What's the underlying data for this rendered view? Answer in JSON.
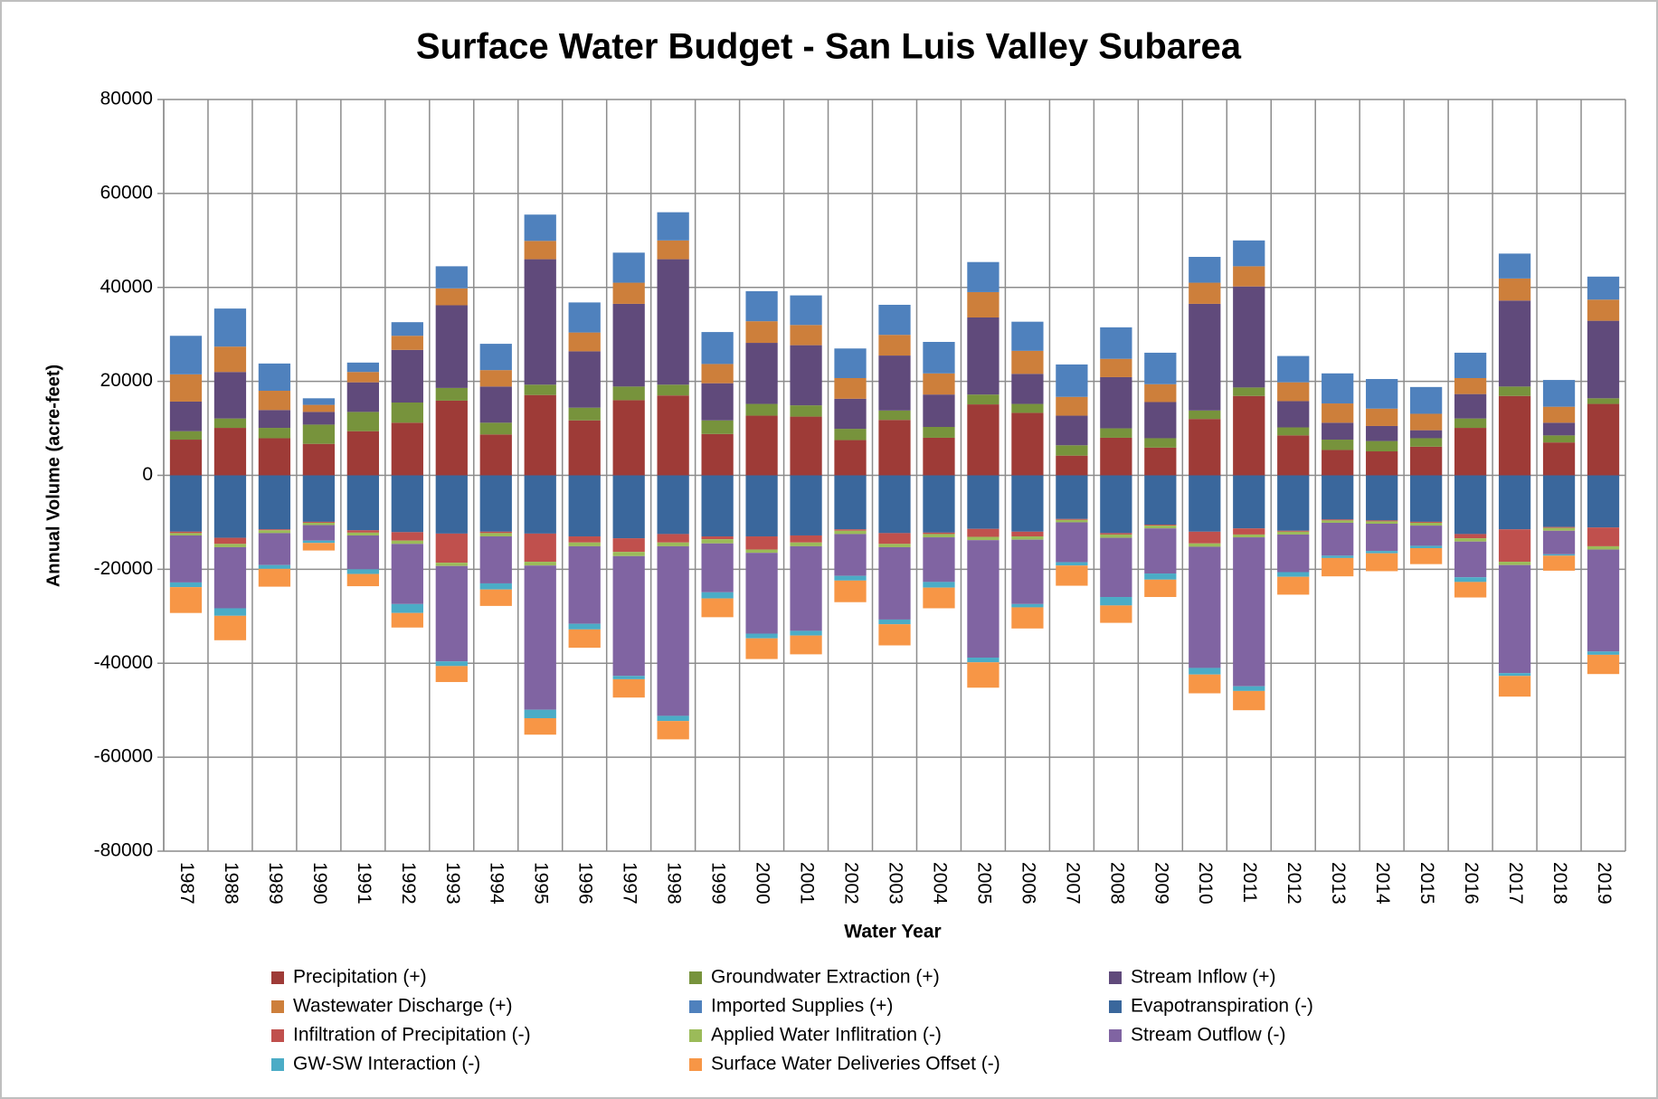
{
  "chart_data": {
    "type": "stacked_bar",
    "title": "Surface Water Budget - San Luis Valley Subarea",
    "x_label": "Water Year",
    "y_label": "Annual Volume (acre-feet)",
    "categories": [
      "1987",
      "1988",
      "1989",
      "1990",
      "1991",
      "1992",
      "1993",
      "1994",
      "1995",
      "1996",
      "1997",
      "1998",
      "1999",
      "2000",
      "2001",
      "2002",
      "2003",
      "2004",
      "2005",
      "2006",
      "2007",
      "2008",
      "2009",
      "2010",
      "2011",
      "2012",
      "2013",
      "2014",
      "2015",
      "2016",
      "2017",
      "2018",
      "2019"
    ],
    "ylim": [
      -80000,
      80000
    ],
    "yticks": [
      -80000,
      -60000,
      -40000,
      -20000,
      0,
      20000,
      40000,
      60000,
      80000
    ],
    "grid": true,
    "legend": "bottom",
    "series": [
      {
        "name": "Precipitation (+)",
        "color": "#9e3b37",
        "values": [
          7600,
          10100,
          7900,
          6700,
          9400,
          11200,
          15900,
          8700,
          17100,
          11700,
          16000,
          17000,
          8800,
          12700,
          12500,
          7500,
          11800,
          8000,
          15100,
          13300,
          4200,
          8000,
          5900,
          12000,
          16900,
          8500,
          5400,
          5100,
          6100,
          10100,
          16900,
          7000,
          15200
        ]
      },
      {
        "name": "Groundwater Extraction (+)",
        "color": "#77933c",
        "values": [
          1800,
          2000,
          2200,
          4100,
          4100,
          4300,
          2700,
          2500,
          2200,
          2700,
          2900,
          2300,
          2900,
          2500,
          2400,
          2400,
          2000,
          2300,
          2100,
          1900,
          2200,
          2000,
          2000,
          1800,
          1800,
          1700,
          2200,
          2200,
          1800,
          2000,
          2000,
          1500,
          1200
        ]
      },
      {
        "name": "Stream Inflow (+)",
        "color": "#604a7b",
        "values": [
          6300,
          9900,
          3800,
          2700,
          6300,
          11200,
          17600,
          7700,
          26700,
          12000,
          17600,
          26700,
          7900,
          13000,
          12800,
          6400,
          11700,
          6900,
          16400,
          6400,
          6300,
          10900,
          7700,
          22700,
          21500,
          5600,
          3600,
          3200,
          1700,
          5200,
          18300,
          2700,
          16500
        ]
      },
      {
        "name": "Wastewater Discharge (+)",
        "color": "#cd7f3b",
        "values": [
          5800,
          5400,
          4100,
          1500,
          2200,
          3000,
          3600,
          3500,
          3900,
          4000,
          4500,
          4000,
          4100,
          4600,
          4300,
          4400,
          4400,
          4500,
          5400,
          4900,
          4000,
          3900,
          3800,
          4500,
          4300,
          4000,
          4100,
          3700,
          3500,
          3400,
          4700,
          3400,
          4500
        ]
      },
      {
        "name": "Imported Supplies (+)",
        "color": "#4f81bd",
        "values": [
          8200,
          8100,
          5800,
          1400,
          2000,
          2900,
          4700,
          5600,
          5600,
          6400,
          6400,
          6000,
          6800,
          6400,
          6300,
          6300,
          6400,
          6700,
          6400,
          6200,
          6900,
          6700,
          6700,
          5500,
          5500,
          5600,
          6400,
          6300,
          5700,
          5400,
          5300,
          5700,
          4900
        ]
      },
      {
        "name": "Evapotranspiration (-)",
        "color": "#3a679c",
        "values": [
          -12000,
          -13300,
          -11500,
          -9900,
          -11700,
          -12100,
          -12400,
          -12000,
          -12400,
          -13000,
          -13400,
          -12500,
          -13000,
          -13000,
          -12800,
          -11500,
          -12300,
          -12200,
          -11400,
          -12000,
          -9300,
          -12300,
          -10500,
          -12000,
          -11300,
          -11800,
          -9400,
          -9600,
          -9900,
          -12500,
          -11500,
          -11000,
          -11100
        ]
      },
      {
        "name": "Infiltration of Precipitation (-)",
        "color": "#c0504d",
        "values": [
          -300,
          -1300,
          -200,
          -200,
          -500,
          -1800,
          -6200,
          -300,
          -6000,
          -1300,
          -2900,
          -1800,
          -600,
          -2800,
          -1500,
          -300,
          -2300,
          -300,
          -1700,
          -1000,
          -200,
          -300,
          -200,
          -2500,
          -1300,
          -200,
          -200,
          -200,
          -200,
          -900,
          -6900,
          -200,
          -4000
        ]
      },
      {
        "name": "Applied Water Inflitration (-)",
        "color": "#9bbb59",
        "values": [
          -500,
          -700,
          -600,
          -500,
          -600,
          -700,
          -700,
          -700,
          -800,
          -800,
          -900,
          -800,
          -900,
          -700,
          -800,
          -700,
          -700,
          -700,
          -700,
          -700,
          -500,
          -700,
          -600,
          -700,
          -600,
          -600,
          -500,
          -500,
          -600,
          -700,
          -700,
          -600,
          -700
        ]
      },
      {
        "name": "Stream Outflow (-)",
        "color": "#8064a2",
        "values": [
          -10000,
          -13000,
          -6800,
          -3300,
          -7200,
          -12800,
          -20300,
          -10000,
          -30700,
          -16500,
          -25500,
          -36100,
          -10400,
          -17200,
          -18000,
          -8900,
          -15400,
          -9500,
          -25000,
          -13700,
          -8500,
          -12600,
          -9600,
          -25800,
          -31700,
          -8000,
          -7000,
          -5800,
          -4300,
          -7600,
          -23000,
          -5000,
          -21700
        ]
      },
      {
        "name": "GW-SW Interaction (-)",
        "color": "#4bacc6",
        "values": [
          -1000,
          -1600,
          -800,
          -500,
          -1000,
          -1900,
          -1000,
          -1300,
          -1800,
          -1200,
          -700,
          -1100,
          -1300,
          -1000,
          -1000,
          -1000,
          -1000,
          -1200,
          -1000,
          -700,
          -700,
          -1800,
          -1300,
          -1400,
          -1000,
          -1000,
          -500,
          -500,
          -500,
          -1000,
          -600,
          -300,
          -700
        ]
      },
      {
        "name": "Surface Water Deliveries Offset (-)",
        "color": "#f79646",
        "values": [
          -5500,
          -5200,
          -3800,
          -1600,
          -2600,
          -3100,
          -3400,
          -3500,
          -3500,
          -3900,
          -3900,
          -3900,
          -4000,
          -4400,
          -4000,
          -4600,
          -4500,
          -4400,
          -5400,
          -4500,
          -4300,
          -3700,
          -3700,
          -4000,
          -4100,
          -3800,
          -3900,
          -3800,
          -3400,
          -3300,
          -4400,
          -3200,
          -4100
        ]
      }
    ]
  }
}
